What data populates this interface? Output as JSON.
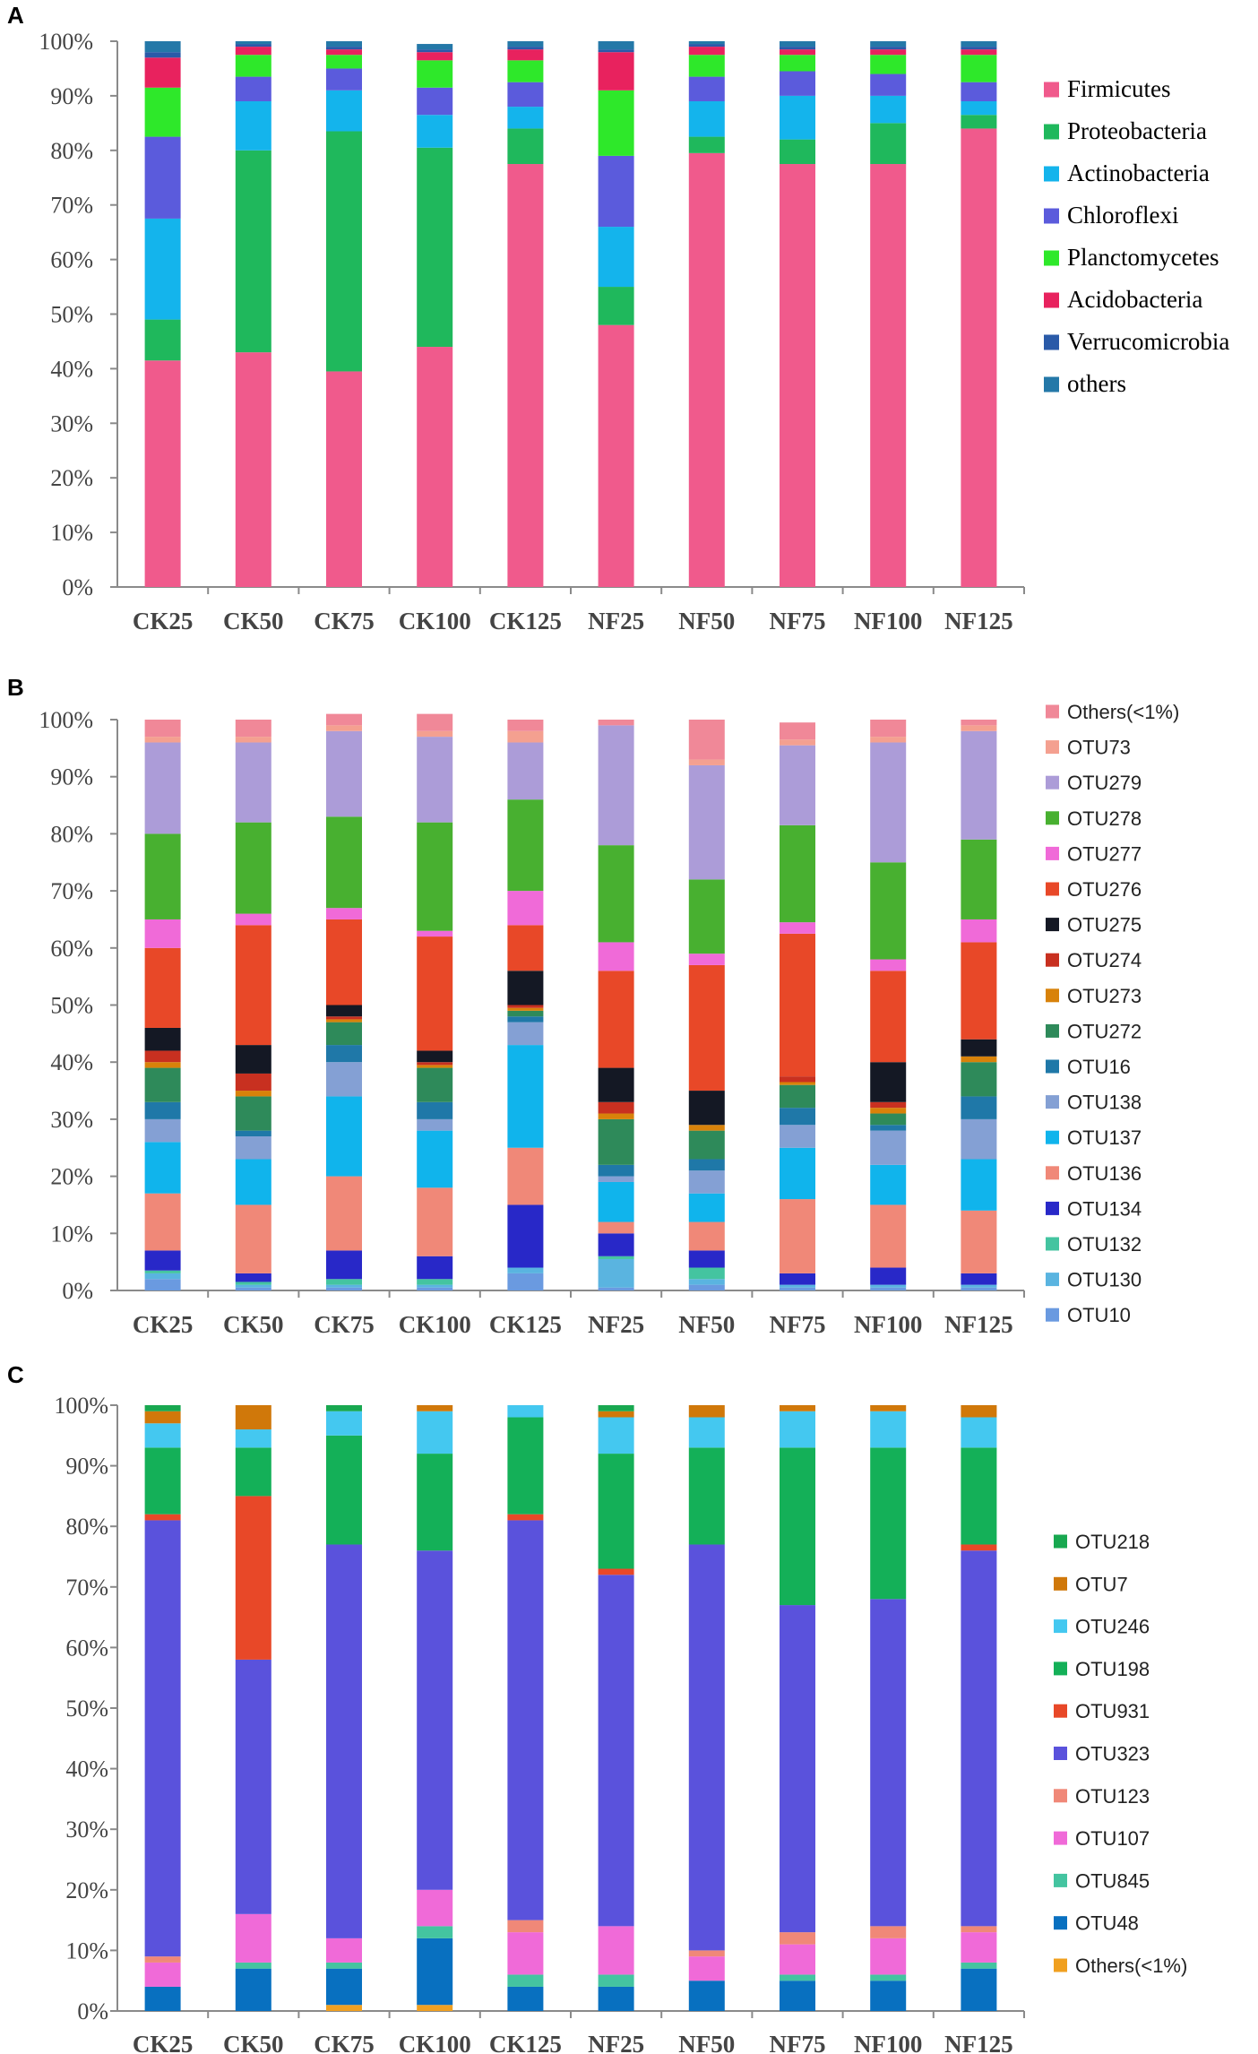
{
  "chart_data": [
    {
      "type": "bar",
      "stacked": true,
      "panel_label": "A",
      "ylabel": "",
      "ylim": [
        0,
        100
      ],
      "yticks": [
        "0%",
        "10%",
        "20%",
        "30%",
        "40%",
        "50%",
        "60%",
        "70%",
        "80%",
        "90%",
        "100%"
      ],
      "categories": [
        "CK25",
        "CK50",
        "CK75",
        "CK100",
        "CK125",
        "NF25",
        "NF50",
        "NF75",
        "NF100",
        "NF125"
      ],
      "legend_order": [
        "Firmicutes",
        "Proteobacteria",
        "Actinobacteria",
        "Chloroflexi",
        "Planctomycetes",
        "Acidobacteria",
        "Verrucomicrobia",
        "others"
      ],
      "series": [
        {
          "name": "Firmicutes",
          "color": "#f05a8c",
          "values": [
            41.5,
            43,
            39.5,
            44,
            77.5,
            48,
            79.5,
            77.5,
            77.5,
            84
          ]
        },
        {
          "name": "Proteobacteria",
          "color": "#1fb85c",
          "values": [
            7.5,
            37,
            44,
            36.5,
            6.5,
            7,
            3,
            4.5,
            7.5,
            2.5
          ]
        },
        {
          "name": "Actinobacteria",
          "color": "#14b4ec",
          "values": [
            18.5,
            9,
            7.5,
            6,
            4,
            11,
            6.5,
            8,
            5,
            2.5
          ]
        },
        {
          "name": "Chloroflexi",
          "color": "#5b5bdc",
          "values": [
            15,
            4.5,
            4,
            5,
            4.5,
            13,
            4.5,
            4.5,
            4,
            3.5
          ]
        },
        {
          "name": "Planctomycetes",
          "color": "#2ee82a",
          "values": [
            9,
            4,
            2.5,
            5,
            4,
            12,
            4,
            3,
            3.5,
            5
          ]
        },
        {
          "name": "Acidobacteria",
          "color": "#e8225e",
          "values": [
            5.5,
            1.5,
            1,
            1.5,
            2,
            7,
            1.5,
            1,
            1,
            1
          ]
        },
        {
          "name": "Verrucomicrobia",
          "color": "#2a5aa8",
          "values": [
            1,
            0.5,
            0.5,
            0.5,
            0.5,
            0.5,
            0.5,
            0.5,
            0.5,
            0.5
          ]
        },
        {
          "name": "others",
          "color": "#2478a8",
          "values": [
            2,
            0.5,
            1,
            1,
            1,
            1.5,
            0.5,
            1,
            1,
            1
          ]
        }
      ]
    },
    {
      "type": "bar",
      "stacked": true,
      "panel_label": "B",
      "ylabel": "",
      "ylim": [
        0,
        100
      ],
      "yticks": [
        "0%",
        "10%",
        "20%",
        "30%",
        "40%",
        "50%",
        "60%",
        "70%",
        "80%",
        "90%",
        "100%"
      ],
      "categories": [
        "CK25",
        "CK50",
        "CK75",
        "CK100",
        "CK125",
        "NF25",
        "NF50",
        "NF75",
        "NF100",
        "NF125"
      ],
      "legend_order": [
        "Others(<1%)",
        "OTU73",
        "OTU279",
        "OTU278",
        "OTU277",
        "OTU276",
        "OTU275",
        "OTU274",
        "OTU273",
        "OTU272",
        "OTU16",
        "OTU138",
        "OTU137",
        "OTU136",
        "OTU134",
        "OTU132",
        "OTU130",
        "OTU10"
      ],
      "series": [
        {
          "name": "OTU10",
          "color": "#6a9ae0",
          "values": [
            2,
            0.5,
            0.5,
            0.5,
            3,
            0.5,
            1,
            0.5,
            0.5,
            0.5
          ]
        },
        {
          "name": "OTU130",
          "color": "#5ab4e0",
          "values": [
            1,
            0.5,
            0.5,
            0.5,
            1,
            5,
            1,
            0.5,
            0.5,
            0.5
          ]
        },
        {
          "name": "OTU132",
          "color": "#44c4a0",
          "values": [
            0.5,
            0.5,
            1,
            1,
            0,
            0.5,
            2,
            0,
            0,
            0
          ]
        },
        {
          "name": "OTU134",
          "color": "#2828c8",
          "values": [
            3.5,
            1.5,
            5,
            4,
            11,
            4,
            3,
            2,
            3,
            2
          ]
        },
        {
          "name": "OTU136",
          "color": "#f08878",
          "values": [
            10,
            12,
            13,
            12,
            10,
            2,
            5,
            13,
            11,
            11
          ]
        },
        {
          "name": "OTU137",
          "color": "#10b4ec",
          "values": [
            9,
            8,
            14,
            10,
            18,
            7,
            5,
            9,
            7,
            9
          ]
        },
        {
          "name": "OTU138",
          "color": "#84a0d4",
          "values": [
            4,
            4,
            6,
            2,
            4,
            1,
            4,
            4,
            6,
            7
          ]
        },
        {
          "name": "OTU16",
          "color": "#1f78a8",
          "values": [
            3,
            1,
            3,
            3,
            1,
            2,
            2,
            3,
            1,
            4
          ]
        },
        {
          "name": "OTU272",
          "color": "#2e8a5a",
          "values": [
            6,
            6,
            4,
            6,
            1,
            8,
            5,
            4,
            2,
            6
          ]
        },
        {
          "name": "OTU273",
          "color": "#d8820a",
          "values": [
            1,
            1,
            0.5,
            0.5,
            0.5,
            1,
            1,
            0.5,
            1,
            1
          ]
        },
        {
          "name": "OTU274",
          "color": "#c83020",
          "values": [
            2,
            3,
            0.5,
            0.5,
            0.5,
            2,
            0,
            1,
            1,
            0
          ]
        },
        {
          "name": "OTU275",
          "color": "#141824",
          "values": [
            4,
            5,
            2,
            2,
            6,
            6,
            6,
            0,
            7,
            3
          ]
        },
        {
          "name": "OTU276",
          "color": "#e84828",
          "values": [
            14,
            21,
            15,
            20,
            8,
            17,
            22,
            25,
            16,
            17
          ]
        },
        {
          "name": "OTU277",
          "color": "#f06ad8",
          "values": [
            5,
            2,
            2,
            1,
            6,
            5,
            2,
            2,
            2,
            4
          ]
        },
        {
          "name": "OTU278",
          "color": "#48b030",
          "values": [
            15,
            16,
            16,
            19,
            16,
            17,
            13,
            17,
            17,
            14
          ]
        },
        {
          "name": "OTU279",
          "color": "#ac9cd8",
          "values": [
            16,
            14,
            15,
            15,
            10,
            21,
            20,
            14,
            21,
            19
          ]
        },
        {
          "name": "OTU73",
          "color": "#f4a090",
          "values": [
            1,
            1,
            1,
            1,
            2,
            0,
            1,
            1,
            1,
            1
          ]
        },
        {
          "name": "Others(<1%)",
          "color": "#f08898",
          "values": [
            3,
            3,
            2,
            3,
            2,
            1,
            7,
            3,
            3,
            1
          ]
        }
      ]
    },
    {
      "type": "bar",
      "stacked": true,
      "panel_label": "C",
      "ylabel": "",
      "ylim": [
        0,
        100
      ],
      "yticks": [
        "0%",
        "10%",
        "20%",
        "30%",
        "40%",
        "50%",
        "60%",
        "70%",
        "80%",
        "90%",
        "100%"
      ],
      "categories": [
        "CK25",
        "CK50",
        "CK75",
        "CK100",
        "CK125",
        "NF25",
        "NF50",
        "NF75",
        "NF100",
        "NF125"
      ],
      "legend_order": [
        "OTU218",
        "OTU7",
        "OTU246",
        "OTU198",
        "OTU931",
        "OTU323",
        "OTU123",
        "OTU107",
        "OTU845",
        "OTU48",
        "Others(<1%)"
      ],
      "series": [
        {
          "name": "Others(<1%)",
          "color": "#f0a020",
          "values": [
            0,
            0,
            1,
            1,
            0,
            0,
            0,
            0,
            0,
            0
          ]
        },
        {
          "name": "OTU48",
          "color": "#0870c0",
          "values": [
            4,
            7,
            6,
            11,
            4,
            4,
            5,
            5,
            5,
            7
          ]
        },
        {
          "name": "OTU845",
          "color": "#44c4a0",
          "values": [
            0,
            1,
            1,
            2,
            2,
            2,
            0,
            1,
            1,
            1
          ]
        },
        {
          "name": "OTU107",
          "color": "#f06ad8",
          "values": [
            4,
            8,
            4,
            6,
            7,
            8,
            4,
            5,
            6,
            5
          ]
        },
        {
          "name": "OTU123",
          "color": "#f08878",
          "values": [
            1,
            0,
            0,
            0,
            2,
            0,
            1,
            2,
            2,
            1
          ]
        },
        {
          "name": "OTU323",
          "color": "#5a52dc",
          "values": [
            72,
            42,
            65,
            56,
            66,
            58,
            67,
            54,
            54,
            62
          ]
        },
        {
          "name": "OTU931",
          "color": "#e84828",
          "values": [
            1,
            27,
            0,
            0,
            1,
            1,
            0,
            0,
            0,
            1
          ]
        },
        {
          "name": "OTU198",
          "color": "#14b058",
          "values": [
            11,
            8,
            18,
            16,
            16,
            19,
            16,
            26,
            25,
            16
          ]
        },
        {
          "name": "OTU246",
          "color": "#44c8f0",
          "values": [
            4,
            3,
            4,
            7,
            2,
            6,
            5,
            6,
            6,
            5
          ]
        },
        {
          "name": "OTU7",
          "color": "#d0780a",
          "values": [
            2,
            4,
            0,
            1,
            0,
            1,
            2,
            1,
            1,
            2
          ]
        },
        {
          "name": "OTU218",
          "color": "#18a850",
          "values": [
            1,
            0,
            1,
            0,
            0,
            1,
            0,
            0,
            0,
            0
          ]
        }
      ]
    }
  ]
}
